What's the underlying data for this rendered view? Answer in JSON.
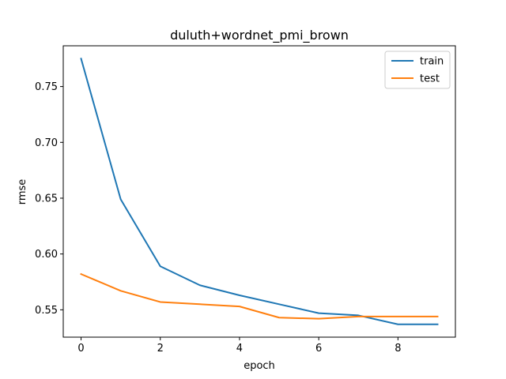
{
  "chart_data": {
    "type": "line",
    "title": "duluth+wordnet_pmi_brown",
    "xlabel": "epoch",
    "ylabel": "rmse",
    "x": [
      0,
      1,
      2,
      3,
      4,
      5,
      6,
      7,
      8,
      9
    ],
    "series": [
      {
        "name": "train",
        "color": "#1f77b4",
        "values": [
          0.775,
          0.649,
          0.589,
          0.572,
          0.563,
          0.555,
          0.547,
          0.545,
          0.537,
          0.537
        ]
      },
      {
        "name": "test",
        "color": "#ff7f0e",
        "values": [
          0.582,
          0.567,
          0.557,
          0.555,
          0.553,
          0.543,
          0.542,
          0.544,
          0.544,
          0.544
        ]
      }
    ],
    "xlim": [
      -0.45,
      9.45
    ],
    "ylim": [
      0.5255,
      0.7865
    ],
    "xticks": [
      0,
      2,
      4,
      6,
      8
    ],
    "yticks": [
      0.55,
      0.6,
      0.65,
      0.7,
      0.75
    ],
    "ytick_labels": [
      "0.55",
      "0.60",
      "0.65",
      "0.70",
      "0.75"
    ],
    "grid": false,
    "legend": "upper-right"
  }
}
